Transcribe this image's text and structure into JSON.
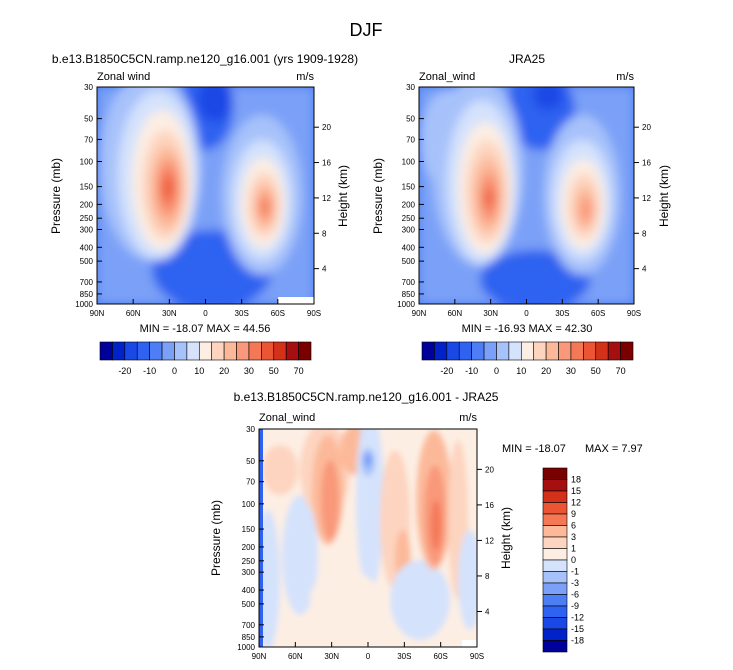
{
  "page_title": "DJF",
  "chart_data": [
    {
      "type": "heatmap",
      "title": "b.e13.B1850C5CN.ramp.ne120_g16.001 (yrs 1909-1928)",
      "left_label": "Zonal wind",
      "units": "m/s",
      "xlabel": "",
      "ylabel": "Pressure (mb)",
      "y2label": "Height (km)",
      "x_ticks": [
        "90N",
        "60N",
        "30N",
        "0",
        "30S",
        "60S",
        "90S"
      ],
      "y_ticks": [
        "30",
        "50",
        "70",
        "100",
        "150",
        "200",
        "250",
        "300",
        "400",
        "500",
        "700",
        "850",
        "1000"
      ],
      "y2_ticks": [
        "20",
        "16",
        "12",
        "8",
        "4"
      ],
      "stats": "MIN = -18.07  MAX = 44.56",
      "colorbar_labels": [
        "-20",
        "-10",
        "0",
        "10",
        "20",
        "30",
        "50",
        "70"
      ]
    },
    {
      "type": "heatmap",
      "title": "JRA25",
      "left_label": "Zonal_wind",
      "units": "m/s",
      "ylabel": "Pressure (mb)",
      "y2label": "Height (km)",
      "x_ticks": [
        "90N",
        "60N",
        "30N",
        "0",
        "30S",
        "60S",
        "90S"
      ],
      "y_ticks": [
        "30",
        "50",
        "70",
        "100",
        "150",
        "200",
        "250",
        "300",
        "400",
        "500",
        "700",
        "850",
        "1000"
      ],
      "y2_ticks": [
        "20",
        "16",
        "12",
        "8",
        "4"
      ],
      "stats": "MIN = -16.93  MAX = 42.30",
      "colorbar_labels": [
        "-20",
        "-10",
        "0",
        "10",
        "20",
        "30",
        "50",
        "70"
      ]
    },
    {
      "type": "heatmap",
      "title": "b.e13.B1850C5CN.ramp.ne120_g16.001 - JRA25",
      "left_label": "Zonal_wind",
      "units": "m/s",
      "ylabel": "Pressure (mb)",
      "y2label": "Height (km)",
      "x_ticks": [
        "90N",
        "60N",
        "30N",
        "0",
        "30S",
        "60S",
        "90S"
      ],
      "y_ticks": [
        "30",
        "50",
        "70",
        "100",
        "150",
        "200",
        "250",
        "300",
        "400",
        "500",
        "700",
        "850",
        "1000"
      ],
      "y2_ticks": [
        "20",
        "16",
        "12",
        "8",
        "4"
      ],
      "stats_min": "MIN = -18.07",
      "stats_max": "MAX =   7.97",
      "colorbar_labels": [
        "18",
        "15",
        "12",
        "9",
        "6",
        "3",
        "1",
        "0",
        "-1",
        "-3",
        "-6",
        "-9",
        "-12",
        "-15",
        "-18"
      ]
    }
  ],
  "colors": {
    "scale": [
      "#00009a",
      "#0022c8",
      "#1a48e6",
      "#2f62f0",
      "#4d7ef5",
      "#7aa0f7",
      "#a7c2fa",
      "#d4e2fc",
      "#fdeee3",
      "#fdd4bf",
      "#fcb99a",
      "#f9987a",
      "#f47856",
      "#ec5533",
      "#d4311a",
      "#a60f0f",
      "#7a0000"
    ],
    "diff_scale": [
      "#7a0000",
      "#a60f0f",
      "#d4311a",
      "#ec5533",
      "#f47856",
      "#fcb99a",
      "#fdd4bf",
      "#fdeee3",
      "#d4e2fc",
      "#a7c2fa",
      "#7aa0f7",
      "#4d7ef5",
      "#2f62f0",
      "#1a48e6",
      "#0022c8",
      "#00009a"
    ]
  }
}
